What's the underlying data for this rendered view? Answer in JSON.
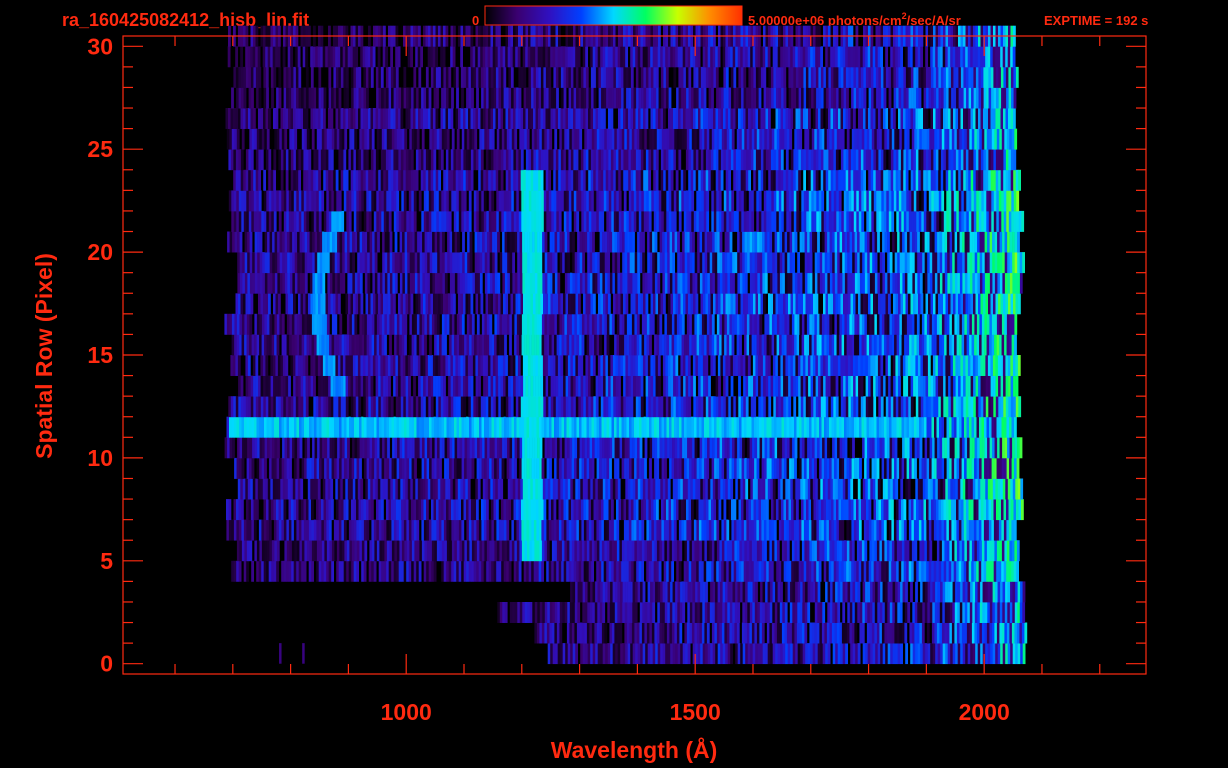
{
  "header": {
    "filename": "ra_160425082412_hisb_lin.fit",
    "colorbar_min": "0",
    "colorbar_max_prefix": "5.00000e+06 photons/cm",
    "colorbar_max_sup": "2",
    "colorbar_max_suffix": "/sec/A/sr",
    "exptime": "EXPTIME = 192 s"
  },
  "colors": {
    "axis": "#ff2a10",
    "background": "#000000",
    "colormap": [
      "#000000",
      "#3a0070",
      "#3010c0",
      "#0040ff",
      "#00d8ff",
      "#00ff60",
      "#c8ff00",
      "#ff8c00",
      "#ff3000"
    ]
  },
  "chart_data": {
    "type": "heatmap",
    "title": "ra_160425082412_hisb_lin.fit",
    "xlabel": "Wavelength (Å)",
    "ylabel": "Spatial Row (Pixel)",
    "xlim": [
      510,
      2280
    ],
    "ylim": [
      -0.5,
      30.5
    ],
    "xticks": [
      1000,
      1500,
      2000
    ],
    "xtick_labels": [
      "1000",
      "1500",
      "2000"
    ],
    "yticks": [
      0,
      5,
      10,
      15,
      20,
      25,
      30
    ],
    "ytick_labels": [
      "0",
      "5",
      "10",
      "15",
      "20",
      "25",
      "30"
    ],
    "colorbar": {
      "min": 0,
      "max": 5000000,
      "unit": "photons/cm2/sec/A/sr"
    },
    "data_extent": {
      "wavelength": [
        685,
        2070
      ],
      "rows": [
        0,
        30
      ]
    },
    "features": [
      {
        "name": "Lyman-alpha",
        "wavelength": 1216,
        "rows": [
          5,
          23
        ],
        "intensity": 0.55
      },
      {
        "name": "bright row",
        "row": 11,
        "wavelength": [
          690,
          1900
        ],
        "intensity": 0.5
      },
      {
        "name": "arc",
        "wavelength": [
          850,
          900
        ],
        "rows": [
          13,
          21
        ],
        "intensity": 0.45
      },
      {
        "name": "long-wavelength rise",
        "wavelength": [
          1900,
          2070
        ],
        "intensity": 0.5
      }
    ],
    "grid": false
  }
}
